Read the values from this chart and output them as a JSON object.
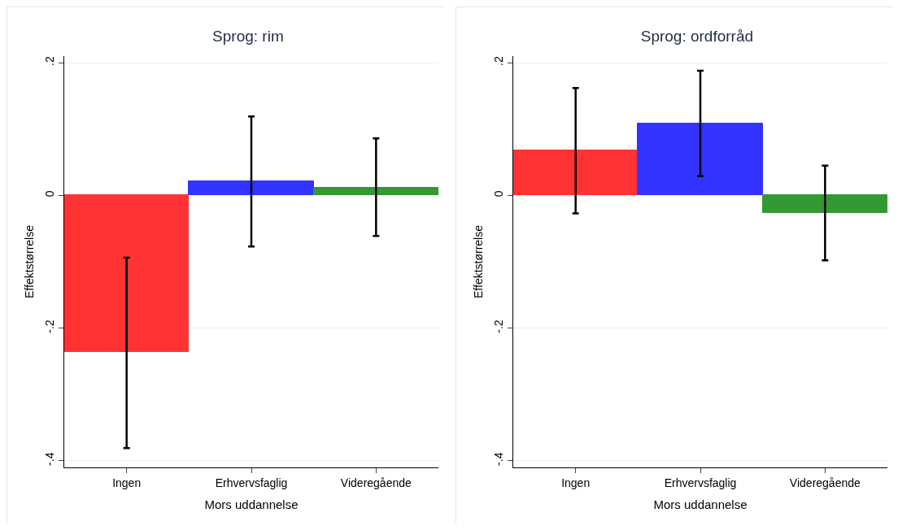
{
  "chart_data": [
    {
      "type": "bar",
      "title": "Sprog: rim",
      "xlabel": "Mors uddannelse",
      "ylabel": "Effektstørrelse",
      "categories": [
        "Ingen",
        "Erhvervsfaglig",
        "Videregående"
      ],
      "values": [
        -0.236,
        0.021,
        0.012
      ],
      "colors": [
        "#ff3333",
        "#3333ff",
        "#339933"
      ],
      "errors": [
        [
          -0.381,
          -0.094
        ],
        [
          -0.077,
          0.119
        ],
        [
          -0.061,
          0.086
        ]
      ],
      "ylim": [
        -0.41,
        0.21
      ],
      "yticks": [
        {
          "value": -0.4,
          "label": "-.4"
        },
        {
          "value": -0.2,
          "label": "-.2"
        },
        {
          "value": 0,
          "label": "0"
        },
        {
          "value": 0.2,
          "label": ".2"
        }
      ],
      "grid": "y"
    },
    {
      "type": "bar",
      "title": "Sprog: ordforråd",
      "xlabel": "Mors uddannelse",
      "ylabel": "Effektstørrelse",
      "categories": [
        "Ingen",
        "Erhvervsfaglig",
        "Videregående"
      ],
      "values": [
        0.068,
        0.108,
        -0.027
      ],
      "colors": [
        "#ff3333",
        "#3333ff",
        "#339933"
      ],
      "errors": [
        [
          -0.027,
          0.162
        ],
        [
          0.029,
          0.188
        ],
        [
          -0.098,
          0.045
        ]
      ],
      "ylim": [
        -0.41,
        0.21
      ],
      "yticks": [
        {
          "value": -0.4,
          "label": "-.4"
        },
        {
          "value": -0.2,
          "label": "-.2"
        },
        {
          "value": 0,
          "label": "0"
        },
        {
          "value": 0.2,
          "label": ".2"
        }
      ],
      "grid": "y"
    }
  ]
}
